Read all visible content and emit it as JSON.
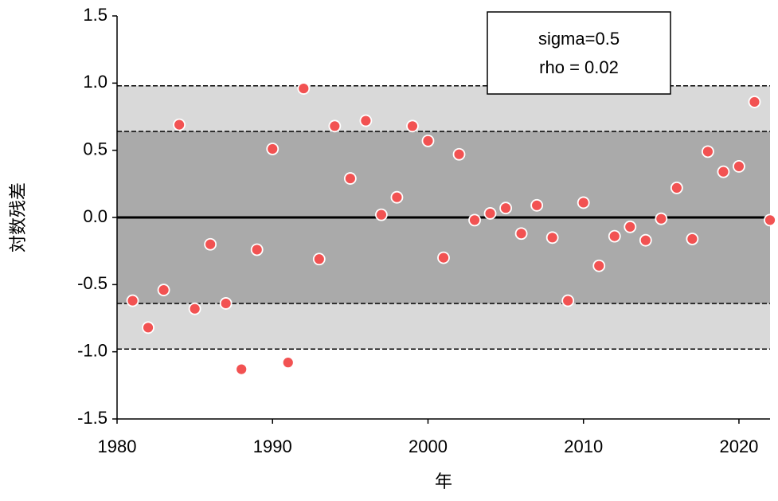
{
  "chart_data": {
    "type": "scatter",
    "x_label": "年",
    "y_label": "対数残差",
    "annotation": [
      "sigma=0.5",
      "rho = 0.02"
    ],
    "x": [
      1981,
      1982,
      1983,
      1984,
      1985,
      1986,
      1987,
      1988,
      1989,
      1990,
      1991,
      1992,
      1993,
      1994,
      1995,
      1996,
      1997,
      1998,
      1999,
      2000,
      2001,
      2002,
      2003,
      2004,
      2005,
      2006,
      2007,
      2008,
      2009,
      2010,
      2011,
      2012,
      2013,
      2014,
      2015,
      2016,
      2017,
      2018,
      2019,
      2020,
      2021,
      2022
    ],
    "values": [
      -0.62,
      -0.82,
      -0.54,
      0.69,
      -0.68,
      -0.2,
      -0.64,
      -1.13,
      -0.24,
      0.51,
      -1.08,
      0.96,
      -0.31,
      0.68,
      0.29,
      0.72,
      0.02,
      0.15,
      0.68,
      0.57,
      -0.3,
      0.47,
      -0.02,
      0.03,
      0.07,
      -0.12,
      0.09,
      -0.15,
      -0.62,
      0.11,
      -0.36,
      -0.14,
      -0.07,
      -0.17,
      -0.01,
      0.22,
      -0.16,
      0.49,
      0.34,
      0.38,
      0.86,
      -0.02
    ],
    "color": "#f25252",
    "bands": [
      {
        "lower": -0.98,
        "upper": 0.98,
        "color": "#d9d9d9"
      },
      {
        "lower": -0.64,
        "upper": 0.64,
        "color": "#aaaaaa"
      }
    ],
    "reference_line": 0,
    "xlim": [
      1980,
      2022
    ],
    "xticks": [
      1980,
      1990,
      2000,
      2010,
      2020
    ],
    "ylim": [
      -1.5,
      1.5
    ],
    "yticks": [
      -1.5,
      {
        "value": -1.0,
        "label": "-1.0"
      },
      -0.5,
      {
        "value": 0.0,
        "label": "0.0"
      },
      0.5,
      {
        "value": 1.0,
        "label": "1.0"
      },
      1.5
    ]
  }
}
